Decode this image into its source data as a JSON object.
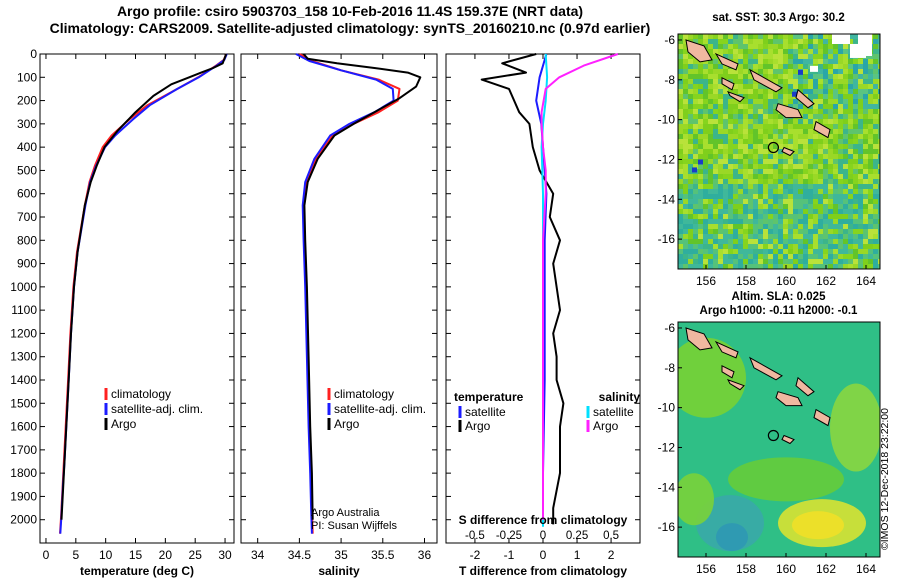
{
  "title": {
    "line1": "Argo profile: csiro 5903703_158 10-Feb-2016 11.4S 159.37E (NRT data)",
    "line2": "Climatology: CARS2009. Satellite-adjusted climatology: synTS_20160210.nc (0.97d earlier)"
  },
  "credit": {
    "line1": "Argo Australia",
    "line2": "PI: Susan Wijffels",
    "imos": "©IMOS 12-Dec-2018 23:22:00"
  },
  "colors": {
    "climatology": "#ff2020",
    "satellite": "#1c1cff",
    "argo": "#000000",
    "sat_salinity": "#00e0ff",
    "argo_salinity": "#ff20ff",
    "land": "#f0b8a0"
  },
  "maps": {
    "sst": {
      "title": "sat. SST: 30.3 Argo: 30.2",
      "lon_ticks": [
        156,
        158,
        160,
        162,
        164
      ],
      "lat_ticks": [
        -6,
        -8,
        -10,
        -12,
        -14,
        -16
      ],
      "argo_marker": {
        "lon": 159.37,
        "lat": -11.4
      }
    },
    "sla": {
      "title_line1": "Altim. SLA: 0.025",
      "title_line2": "Argo h1000: -0.11 h2000: -0.1",
      "lon_ticks": [
        156,
        158,
        160,
        162,
        164
      ],
      "lat_ticks": [
        -6,
        -8,
        -10,
        -12,
        -14,
        -16
      ],
      "argo_marker": {
        "lon": 159.37,
        "lat": -11.4
      }
    }
  },
  "chart_data": [
    {
      "type": "line",
      "xlabel": "temperature (deg C)",
      "xlim": [
        -1,
        31.5
      ],
      "ylim": [
        2100,
        0
      ],
      "x_ticks": [
        0,
        5,
        10,
        15,
        20,
        25,
        30
      ],
      "y_ticks": [
        0,
        100,
        200,
        300,
        400,
        500,
        600,
        700,
        800,
        900,
        1000,
        1100,
        1200,
        1300,
        1400,
        1500,
        1600,
        1700,
        1800,
        1900,
        2000
      ],
      "legend": [
        "climatology",
        "satellite-adj. clim.",
        "Argo"
      ],
      "series": [
        {
          "name": "climatology",
          "x": [
            30.2,
            29.8,
            28.5,
            25.5,
            22,
            17,
            14,
            11,
            9.5,
            8.2,
            7.3,
            6.5,
            5.2,
            4.6,
            4.1,
            3.7,
            3.3,
            3.0,
            2.8,
            2.6,
            2.5,
            2.35
          ],
          "y": [
            0,
            25,
            50,
            100,
            150,
            220,
            280,
            350,
            400,
            480,
            550,
            650,
            850,
            1000,
            1200,
            1400,
            1600,
            1750,
            1850,
            1950,
            2000,
            2060
          ]
        },
        {
          "name": "satellite-adj. clim.",
          "x": [
            30.3,
            29.9,
            28.6,
            25.6,
            22,
            17.4,
            14.6,
            11.6,
            9.9,
            8.4,
            7.4,
            6.6,
            5.3,
            4.7,
            4.2,
            3.8,
            3.4,
            3.1,
            2.85,
            2.65,
            2.55,
            2.4
          ],
          "y": [
            0,
            25,
            50,
            100,
            150,
            220,
            280,
            350,
            400,
            480,
            550,
            650,
            850,
            1000,
            1200,
            1400,
            1600,
            1750,
            1850,
            1950,
            2000,
            2060
          ]
        },
        {
          "name": "Argo",
          "x": [
            30.2,
            29.9,
            29.6,
            28,
            26,
            24,
            21,
            18,
            15,
            12,
            9.8,
            8.5,
            7.5,
            6.5,
            5.3,
            4.7,
            4.2,
            3.8,
            3.4,
            3.1,
            2.9,
            2.7,
            2.6
          ],
          "y": [
            0,
            20,
            40,
            60,
            80,
            100,
            130,
            180,
            250,
            330,
            400,
            480,
            550,
            650,
            850,
            1000,
            1200,
            1400,
            1600,
            1750,
            1850,
            1950,
            2000
          ]
        }
      ]
    },
    {
      "type": "line",
      "xlabel": "salinity",
      "xlim": [
        33.8,
        36.15
      ],
      "ylim": [
        2100,
        0
      ],
      "x_ticks": [
        34,
        34.5,
        35,
        35.5,
        36
      ],
      "legend": [
        "climatology",
        "satellite-adj. clim.",
        "Argo"
      ],
      "series": [
        {
          "name": "climatology",
          "x": [
            34.5,
            34.65,
            35.0,
            35.45,
            35.7,
            35.68,
            35.45,
            35.15,
            34.9,
            34.7,
            34.58,
            34.55,
            34.56,
            34.58,
            34.6,
            34.62,
            34.64,
            34.65,
            34.66
          ],
          "y": [
            0,
            30,
            70,
            110,
            150,
            200,
            250,
            300,
            350,
            450,
            550,
            650,
            800,
            1000,
            1300,
            1600,
            1800,
            1950,
            2060
          ]
        },
        {
          "name": "satellite-adj. clim.",
          "x": [
            34.46,
            34.62,
            35.0,
            35.42,
            35.62,
            35.63,
            35.4,
            35.1,
            34.87,
            34.68,
            34.57,
            34.54,
            34.55,
            34.57,
            34.59,
            34.61,
            34.63,
            34.64,
            34.65
          ],
          "y": [
            0,
            30,
            70,
            110,
            150,
            200,
            250,
            300,
            350,
            450,
            550,
            650,
            800,
            1000,
            1300,
            1600,
            1800,
            1950,
            2060
          ]
        },
        {
          "name": "Argo",
          "x": [
            34.55,
            34.6,
            34.95,
            35.4,
            35.8,
            35.95,
            35.9,
            35.7,
            35.4,
            35.15,
            34.92,
            34.72,
            34.6,
            34.56,
            34.57,
            34.59,
            34.61,
            34.63,
            34.65,
            34.66
          ],
          "y": [
            0,
            20,
            40,
            60,
            80,
            100,
            140,
            190,
            250,
            300,
            350,
            450,
            550,
            650,
            800,
            1000,
            1300,
            1600,
            1800,
            2000
          ]
        }
      ]
    },
    {
      "type": "line",
      "xlabel": "T difference from climatology",
      "xlabel_top": "S difference from climatology",
      "xlim": [
        -2.85,
        2.85
      ],
      "ylim": [
        2100,
        0
      ],
      "x_ticks": [
        -2,
        -1,
        0,
        1,
        2
      ],
      "x2_ticks": [
        "-0.5",
        "-0.25",
        "0",
        "0.25",
        "0.5"
      ],
      "x2_values": [
        -0.5,
        -0.25,
        0,
        0.25,
        0.5
      ],
      "legend_left_title": "temperature",
      "legend_right_title": "salinity",
      "legend": [
        "satellite",
        "Argo",
        "satellite",
        "Argo"
      ],
      "series": [
        {
          "name": "satellite",
          "x": [
            0.1,
            -0.1,
            -0.2,
            -0.05,
            0,
            0.05,
            0.1,
            0.05,
            0.05,
            0.05,
            0,
            0
          ],
          "y": [
            0,
            100,
            200,
            300,
            400,
            500,
            600,
            800,
            1000,
            1400,
            1800,
            2000
          ]
        },
        {
          "name": "Argo",
          "x": [
            -0.2,
            -1.2,
            -0.5,
            -1.8,
            -1.0,
            -0.7,
            -0.4,
            -0.3,
            -0.1,
            0.3,
            0.2,
            0.5,
            0.3,
            0.4,
            0.5,
            0.3,
            0.4,
            0.4,
            0.6,
            0.5,
            0.5,
            0.3,
            0.3
          ],
          "y": [
            0,
            40,
            80,
            110,
            150,
            250,
            300,
            400,
            500,
            600,
            700,
            800,
            900,
            1000,
            1100,
            1200,
            1300,
            1400,
            1500,
            1600,
            1800,
            1950,
            2020
          ]
        },
        {
          "name": "satellite",
          "x": [
            0.02,
            0.03,
            0.02,
            0.0,
            -0.01,
            0.0,
            0.0,
            0.0,
            0.0,
            0.0,
            0.0
          ],
          "y": [
            0,
            100,
            200,
            300,
            400,
            600,
            800,
            1000,
            1400,
            1800,
            2030
          ]
        },
        {
          "name": "Argo",
          "x": [
            0.55,
            0.3,
            0.12,
            0.02,
            -0.01,
            -0.01,
            0.0,
            0.02,
            0.02,
            0.0,
            0.0,
            0.0,
            0.0
          ],
          "y": [
            0,
            50,
            100,
            150,
            250,
            300,
            400,
            500,
            600,
            800,
            1200,
            1600,
            2000
          ]
        }
      ]
    }
  ]
}
